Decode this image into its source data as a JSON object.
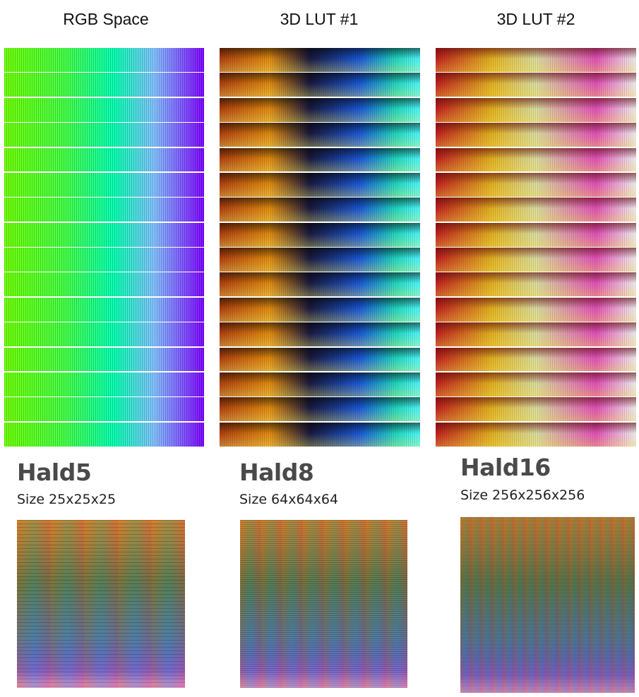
{
  "columns": [
    {
      "title": "RGB Space",
      "strip_count": 16
    },
    {
      "title": "3D LUT #1",
      "strip_count": 16
    },
    {
      "title": "3D LUT #2",
      "strip_count": 16
    }
  ],
  "halds": [
    {
      "title": "Hald5",
      "size_label": "Size 25x25x25",
      "level": 5
    },
    {
      "title": "Hald8",
      "size_label": "Size 64x64x64",
      "level": 8
    },
    {
      "title": "Hald16",
      "size_label": "Size 256x256x256",
      "level": 16
    }
  ],
  "colors": {
    "rgb_strip": [
      "#55ff00",
      "#00ffaa",
      "#9955ff",
      "#7a00ff"
    ],
    "lut1_strip": [
      "#5a1a10",
      "#e07a10",
      "#1a1a3a",
      "#1a5ad0",
      "#20d0a0",
      "#40f0ff"
    ],
    "lut2_strip": [
      "#8a0a10",
      "#e0c020",
      "#d8e0a0",
      "#e040b0",
      "#f0f0f0"
    ]
  }
}
